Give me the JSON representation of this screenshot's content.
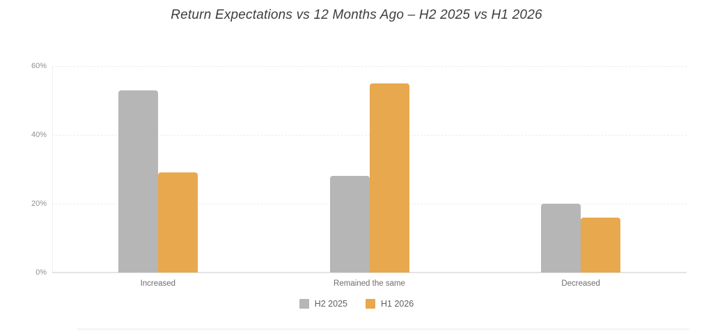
{
  "title": "Return Expectations vs 12 Months Ago – H2 2025 vs H1 2026",
  "chart_data": {
    "type": "bar",
    "title": "Return Expectations vs 12 Months Ago – H2 2025 vs H1 2026",
    "categories": [
      "Increased",
      "Remained the same",
      "Decreased"
    ],
    "series": [
      {
        "name": "H2 2025",
        "color": "#b6b6b6",
        "values": [
          53,
          28,
          20
        ]
      },
      {
        "name": "H1 2026",
        "color": "#e8a84d",
        "values": [
          29,
          55,
          16
        ]
      }
    ],
    "xlabel": "",
    "ylabel": "",
    "ylim": [
      0,
      60
    ],
    "yticks": [
      0,
      20,
      40,
      60
    ],
    "ytick_labels": [
      "0%",
      "20%",
      "40%",
      "60%"
    ],
    "grid": true,
    "legend_position": "bottom"
  },
  "colors": {
    "h2_2025_gray": "#b6b6b6",
    "h1_2026_orange": "#e8a84d",
    "gridline": "#ececec",
    "baseline": "#e4e4e4"
  }
}
